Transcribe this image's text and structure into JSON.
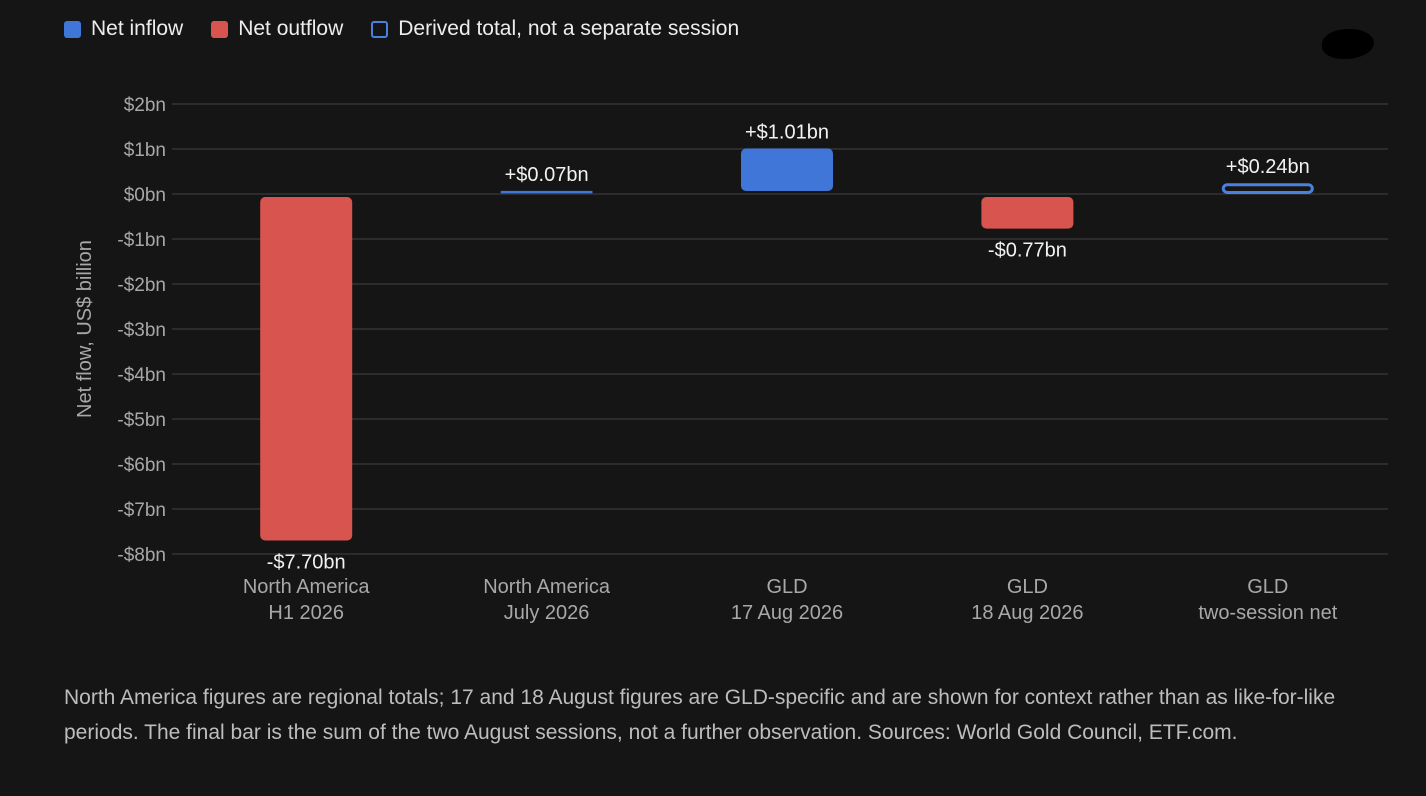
{
  "colors": {
    "inflow": "#3f76d8",
    "outflow": "#d8544e",
    "derived_stroke": "#4a80e0",
    "grid": "#343434",
    "tick_text": "#a8a8a8",
    "label_text": "#f2f2f2",
    "category_text": "#a8a8a8"
  },
  "legend": {
    "items": [
      {
        "label": "Net inflow",
        "style": "inflow"
      },
      {
        "label": "Net outflow",
        "style": "outflow"
      },
      {
        "label": "Derived total, not a separate session",
        "style": "derived"
      }
    ]
  },
  "chart_data": {
    "type": "bar",
    "ylabel": "Net flow, US$ billion",
    "ylim": [
      -8,
      2
    ],
    "yticks": [
      2,
      1,
      0,
      -1,
      -2,
      -3,
      -4,
      -5,
      -6,
      -7,
      -8
    ],
    "ytick_labels": [
      "$2bn",
      "$1bn",
      "$0bn",
      "-$1bn",
      "-$2bn",
      "-$3bn",
      "-$4bn",
      "-$5bn",
      "-$6bn",
      "-$7bn",
      "-$8bn"
    ],
    "grid": true,
    "legend_position": "top-left",
    "categories": [
      [
        "North America",
        "H1 2026"
      ],
      [
        "North America",
        "July 2026"
      ],
      [
        "GLD",
        "17 Aug 2026"
      ],
      [
        "GLD",
        "18 Aug 2026"
      ],
      [
        "GLD",
        "two-session net"
      ]
    ],
    "values": [
      -7.7,
      0.07,
      1.01,
      -0.77,
      0.24
    ],
    "data_labels": [
      "-$7.70bn",
      "+$0.07bn",
      "+$1.01bn",
      "-$0.77bn",
      "+$0.24bn"
    ],
    "styles": [
      "outflow",
      "inflow",
      "inflow",
      "outflow",
      "derived"
    ]
  },
  "caption": "North America figures are regional totals; 17 and 18 August figures are GLD-specific and are shown for context rather than as like-for-like periods. The final bar is the sum of the two August sessions, not a further observation. Sources: World Gold Council, ETF.com."
}
